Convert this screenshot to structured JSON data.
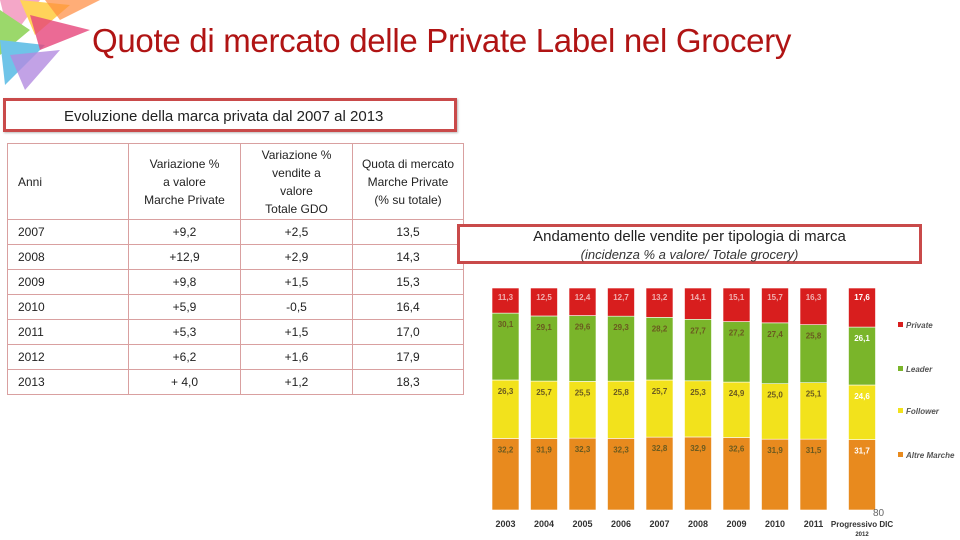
{
  "slide": {
    "title": "Quote di mercato delle Private Label nel Grocery",
    "page_number": "80"
  },
  "table_box": {
    "title": "Evoluzione della marca privata dal 2007 al 2013"
  },
  "table": {
    "headers": [
      {
        "lines": [
          "Anni"
        ]
      },
      {
        "lines": [
          "Variazione %",
          "a valore",
          "Marche Private"
        ]
      },
      {
        "lines": [
          "Variazione %",
          "vendite a",
          "valore",
          "Totale GDO"
        ]
      },
      {
        "lines": [
          "Quota di mercato",
          "Marche Private",
          "(% su totale)"
        ]
      }
    ],
    "rows": [
      [
        "2007",
        "+9,2",
        "+2,5",
        "13,5"
      ],
      [
        "2008",
        "+12,9",
        "+2,9",
        "14,3"
      ],
      [
        "2009",
        "+9,8",
        "+1,5",
        "15,3"
      ],
      [
        "2010",
        "+5,9",
        "-0,5",
        "16,4"
      ],
      [
        "2011",
        "+5,3",
        "+1,5",
        "17,0"
      ],
      [
        "2012",
        "+6,2",
        "+1,6",
        "17,9"
      ],
      [
        "2013",
        "+ 4,0",
        "+1,2",
        "18,3"
      ]
    ]
  },
  "chart_box": {
    "title": "Andamento delle vendite per tipologia di marca",
    "subtitle": "(incidenza % a valore/ Totale grocery)"
  },
  "chart_data": {
    "type": "bar",
    "stacked": true,
    "percent": true,
    "categories": [
      "2003",
      "2004",
      "2005",
      "2006",
      "2007",
      "2008",
      "2009",
      "2010",
      "2011",
      "Progressivo DIC 2012"
    ],
    "series": [
      {
        "name": "Altre Marche",
        "color": "#e88a1e",
        "values": [
          32.2,
          31.9,
          32.3,
          32.3,
          32.8,
          32.9,
          32.6,
          31.9,
          31.5,
          31.7
        ],
        "labels": [
          "32,2",
          "31,9",
          "32,3",
          "32,3",
          "32,8",
          "32,9",
          "32,6",
          "31,9",
          "31,5",
          "31,7"
        ]
      },
      {
        "name": "Follower",
        "color": "#f2e21c",
        "values": [
          26.3,
          25.7,
          25.5,
          25.8,
          25.7,
          25.3,
          24.9,
          25.0,
          25.1,
          24.6
        ],
        "labels": [
          "26,3",
          "25,7",
          "25,5",
          "25,8",
          "25,7",
          "25,3",
          "24,9",
          "25,0",
          "25,1",
          "24,6"
        ]
      },
      {
        "name": "Leader",
        "color": "#7ab52a",
        "values": [
          30.1,
          29.1,
          29.6,
          29.3,
          28.2,
          27.7,
          27.2,
          27.4,
          25.8,
          26.1
        ],
        "labels": [
          "30,1",
          "29,1",
          "29,6",
          "29,3",
          "28,2",
          "27,7",
          "27,2",
          "27,4",
          "25,8",
          "26,1"
        ]
      },
      {
        "name": "Private",
        "color": "#d81e1e",
        "values": [
          11.3,
          12.5,
          12.4,
          12.7,
          13.2,
          14.1,
          15.1,
          15.7,
          16.3,
          17.6
        ],
        "labels": [
          "11,3",
          "12,5",
          "12,4",
          "12,7",
          "13,2",
          "14,1",
          "15,1",
          "15,7",
          "16,3",
          "17,6"
        ]
      }
    ],
    "legend_position": "right"
  }
}
